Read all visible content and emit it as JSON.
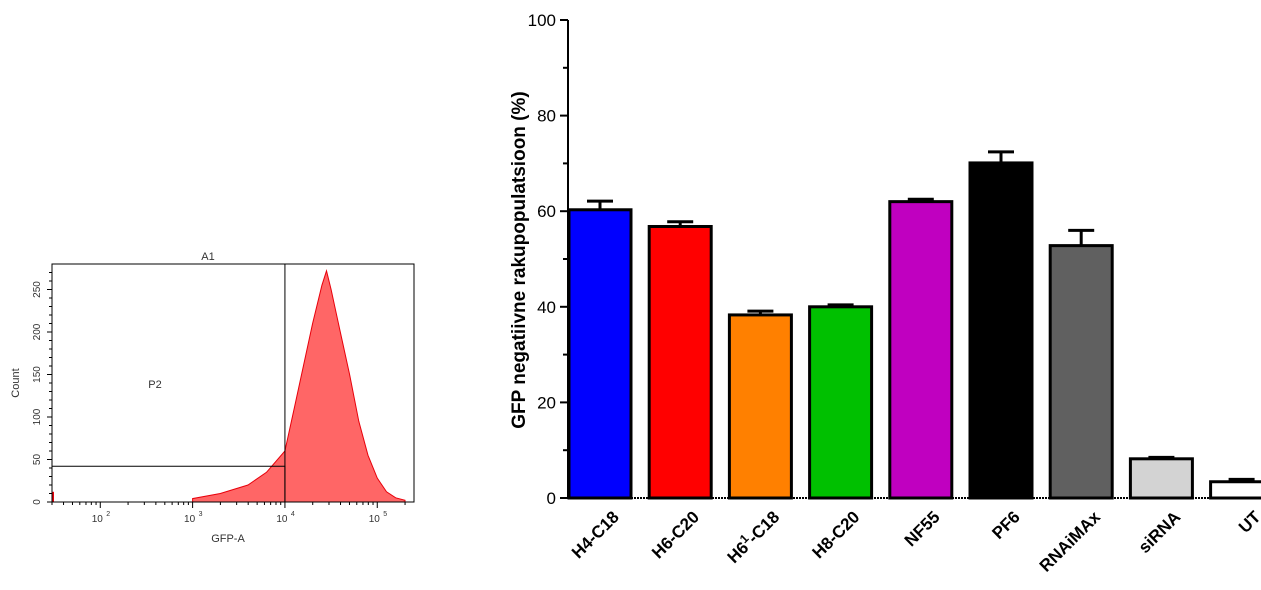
{
  "chart_data": [
    {
      "type": "area",
      "title": "",
      "xlabel": "GFP-A",
      "ylabel": "Count",
      "x_scale": "log",
      "xlim": [
        30,
        250000
      ],
      "ylim": [
        0,
        280
      ],
      "x_tick_labels": [
        "10",
        "10",
        "10",
        "10"
      ],
      "x_tick_exponents": [
        "2",
        "3",
        "4",
        "5"
      ],
      "x_tick_values": [
        100,
        1000,
        10000,
        100000
      ],
      "y_ticks": [
        0,
        50,
        100,
        150,
        200,
        250
      ],
      "gates": [
        {
          "name": "A1",
          "shape": "rectangle",
          "x_range": [
            10000,
            250000
          ]
        },
        {
          "name": "P2",
          "shape": "rectangle",
          "x_range": [
            30,
            10000
          ],
          "y_range": [
            0,
            42
          ]
        }
      ],
      "histogram_color": "#ff6666",
      "histogram_edge_color": "#e8000b",
      "histogram": {
        "log10_x": [
          3.0,
          3.3,
          3.6,
          3.8,
          4.0,
          4.1,
          4.2,
          4.3,
          4.4,
          4.45,
          4.5,
          4.55,
          4.6,
          4.7,
          4.8,
          4.9,
          5.0,
          5.1,
          5.2,
          5.3
        ],
        "counts": [
          4,
          10,
          20,
          35,
          60,
          110,
          160,
          210,
          255,
          272,
          250,
          225,
          200,
          150,
          95,
          55,
          28,
          12,
          5,
          2
        ]
      }
    },
    {
      "type": "bar",
      "title": "",
      "xlabel": "",
      "ylabel": "GFP negatiivne rakupopulatsioon (%)",
      "ylim": [
        0,
        100
      ],
      "y_ticks": [
        0,
        20,
        40,
        60,
        80,
        100
      ],
      "categories": [
        "H4-C18",
        "H6-C20",
        "H6",
        "H8-C20",
        "NF55",
        "PF6",
        "RNAiMAx",
        "siRNA",
        "UT"
      ],
      "category_superscripts": [
        "",
        "",
        "1",
        "",
        "",
        "",
        "",
        "",
        ""
      ],
      "category_suffixes": [
        "",
        "",
        "-C18",
        "",
        "",
        "",
        "",
        "",
        ""
      ],
      "values": [
        60.3,
        56.8,
        38.3,
        40.0,
        62.0,
        70.1,
        52.8,
        8.2,
        3.4
      ],
      "errors": [
        1.8,
        1.0,
        0.8,
        0.4,
        0.5,
        2.3,
        3.2,
        0.3,
        0.5
      ],
      "colors": [
        "#0000ff",
        "#ff0000",
        "#ff8000",
        "#00c000",
        "#c000c0",
        "#000000",
        "#606060",
        "#d3d3d3",
        "#ffffff"
      ],
      "grid": false,
      "legend": "none"
    }
  ]
}
